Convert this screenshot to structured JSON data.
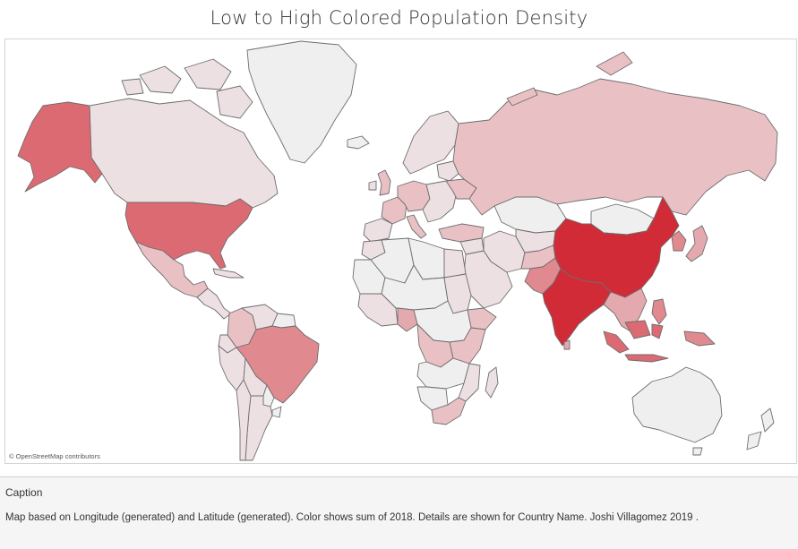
{
  "title": "Low to High Colored Population Density",
  "attribution": "© OpenStreetMap contributors",
  "caption": {
    "heading": "Caption",
    "text": "Map based on Longitude (generated) and Latitude (generated).  Color shows sum of 2018.  Details are shown for Country Name. Joshi Villagomez 2019 ."
  },
  "colors": {
    "lowest": "#f0eff0",
    "low": "#ede0e2",
    "mid_low": "#e9c1c5",
    "mid": "#e4a9ae",
    "mid_high": "#e08a90",
    "high": "#dc6a72",
    "highest": "#d12b38",
    "border": "#6d6d6d"
  }
}
